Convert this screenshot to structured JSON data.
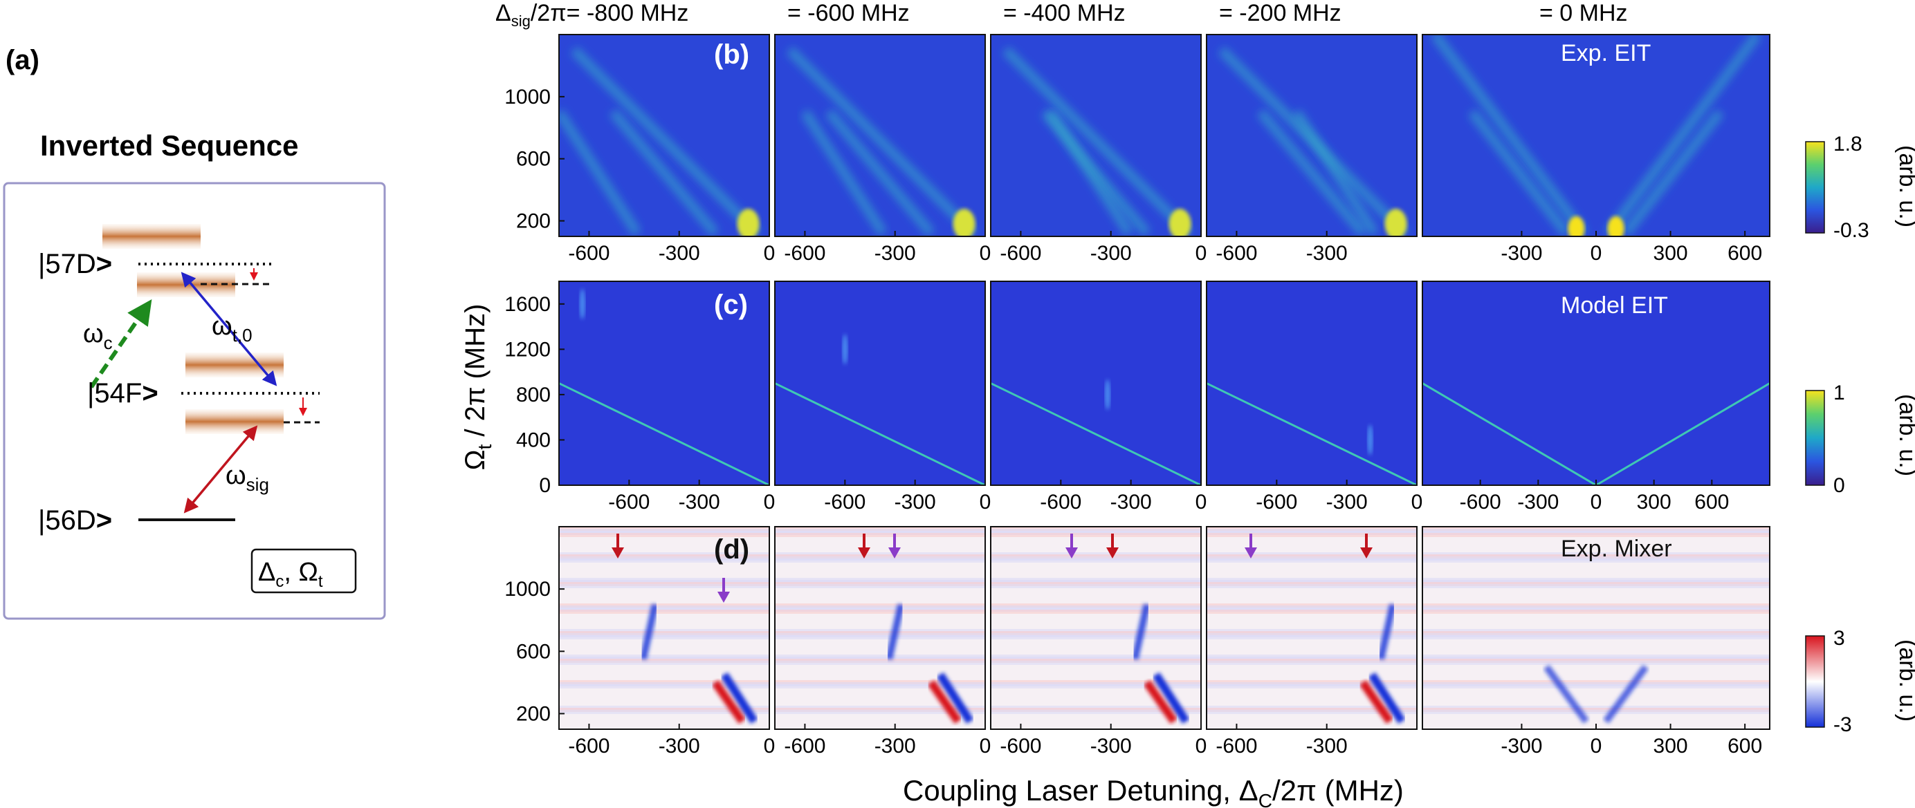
{
  "panel_a": {
    "label": "(a)",
    "title": "Inverted Sequence",
    "level_57D": "|57D",
    "level_54F": "|54F",
    "level_56D": "|56D",
    "ket_close": ">",
    "omega_c": "ω",
    "omega_c_sub": "c",
    "omega_t": "ω",
    "omega_t_sub": "t,0",
    "omega_sig": "ω",
    "omega_sig_sub": "sig",
    "box_delta": "Δ",
    "box_delta_sub": "c",
    "box_comma": ", Ω",
    "box_omega_sub": "t",
    "colors": {
      "band": "#c8753a",
      "green_arrow": "#1e8a1e",
      "blue_arrow": "#2323c8",
      "red_arrow": "#c0141e",
      "frame": "#9a96c8"
    }
  },
  "column_headers": {
    "first_prefix": "Δ",
    "first_sub": "sig",
    "first_rest": "/2π= -800 MHz",
    "others": [
      "= -600 MHz",
      "= -400 MHz",
      "= -200 MHz",
      "= 0 MHz"
    ]
  },
  "row_labels": {
    "b": "(b)",
    "c": "(c)",
    "d": "(d)"
  },
  "panel_titles": {
    "b": "Exp. EIT",
    "c": "Model EIT",
    "d": "Exp. Mixer"
  },
  "y_axis": {
    "main": "Ω",
    "sub": "t",
    "rest": " / 2π (MHz)"
  },
  "x_axis": {
    "main": "Coupling Laser Detuning, Δ",
    "sub": "C",
    "rest": "/2π (MHz)"
  },
  "colorbars": {
    "b": {
      "max": "1.8",
      "min": "-0.3",
      "unit": "(arb. u.)"
    },
    "c": {
      "max": "1",
      "min": "0",
      "unit": "(arb. u.)"
    },
    "d": {
      "max": "3",
      "min": "-3",
      "unit": "(arb. u.)"
    }
  },
  "colors": {
    "viridis_dark": "#3a1e8c",
    "panel_bg_blue": "#2b3bd8",
    "line_cyan": "#3fc8b4",
    "mixer_red": "#d8141e",
    "mixer_blue": "#1430d8"
  },
  "chart_data": [
    {
      "type": "heatmap",
      "title": "Exp. EIT",
      "xlabel": "Coupling Laser Detuning, ΔC/2π (MHz)",
      "ylabel": "Ωt / 2π (MHz)",
      "ylim": [
        100,
        1400
      ],
      "y_ticks": [
        200,
        600,
        1000
      ],
      "colorbar_range": [
        -0.3,
        1.8
      ],
      "panels": [
        {
          "delta_sig": -800,
          "xlim": [
            -700,
            0
          ],
          "x_ticks": [
            -600,
            -300,
            0
          ]
        },
        {
          "delta_sig": -600,
          "xlim": [
            -700,
            0
          ],
          "x_ticks": [
            -600,
            -300,
            0
          ]
        },
        {
          "delta_sig": -400,
          "xlim": [
            -700,
            0
          ],
          "x_ticks": [
            -600,
            -300,
            0
          ]
        },
        {
          "delta_sig": -200,
          "xlim": [
            -700,
            0
          ],
          "x_ticks": [
            -600,
            -300
          ]
        },
        {
          "delta_sig": 0,
          "xlim": [
            -700,
            700
          ],
          "x_ticks": [
            -300,
            0,
            300,
            600
          ]
        }
      ]
    },
    {
      "type": "heatmap",
      "title": "Model EIT",
      "ylim": [
        0,
        1800
      ],
      "y_ticks": [
        0,
        400,
        800,
        1200,
        1600
      ],
      "colorbar_range": [
        0,
        1
      ],
      "panels": [
        {
          "delta_sig": -800,
          "xlim": [
            -900,
            0
          ],
          "x_ticks": [
            -600,
            -300,
            0
          ]
        },
        {
          "delta_sig": -600,
          "xlim": [
            -900,
            0
          ],
          "x_ticks": [
            -600,
            -300,
            0
          ]
        },
        {
          "delta_sig": -400,
          "xlim": [
            -900,
            0
          ],
          "x_ticks": [
            -600,
            -300,
            0
          ]
        },
        {
          "delta_sig": -200,
          "xlim": [
            -900,
            0
          ],
          "x_ticks": [
            -600,
            -300,
            0
          ]
        },
        {
          "delta_sig": 0,
          "xlim": [
            -900,
            900
          ],
          "x_ticks": [
            -600,
            -300,
            0,
            300,
            600
          ]
        }
      ]
    },
    {
      "type": "heatmap",
      "title": "Exp. Mixer",
      "ylim": [
        100,
        1400
      ],
      "y_ticks": [
        200,
        600,
        1000
      ],
      "colorbar_range": [
        -3,
        3
      ],
      "panels": [
        {
          "delta_sig": -800,
          "xlim": [
            -700,
            0
          ],
          "x_ticks": [
            -600,
            -300,
            0
          ]
        },
        {
          "delta_sig": -600,
          "xlim": [
            -700,
            0
          ],
          "x_ticks": [
            -600,
            -300,
            0
          ]
        },
        {
          "delta_sig": -400,
          "xlim": [
            -700,
            0
          ],
          "x_ticks": [
            -600,
            -300,
            0
          ]
        },
        {
          "delta_sig": -200,
          "xlim": [
            -700,
            0
          ],
          "x_ticks": [
            -600,
            -300
          ]
        },
        {
          "delta_sig": 0,
          "xlim": [
            -700,
            700
          ],
          "x_ticks": [
            -300,
            0,
            300,
            600
          ]
        }
      ]
    }
  ]
}
